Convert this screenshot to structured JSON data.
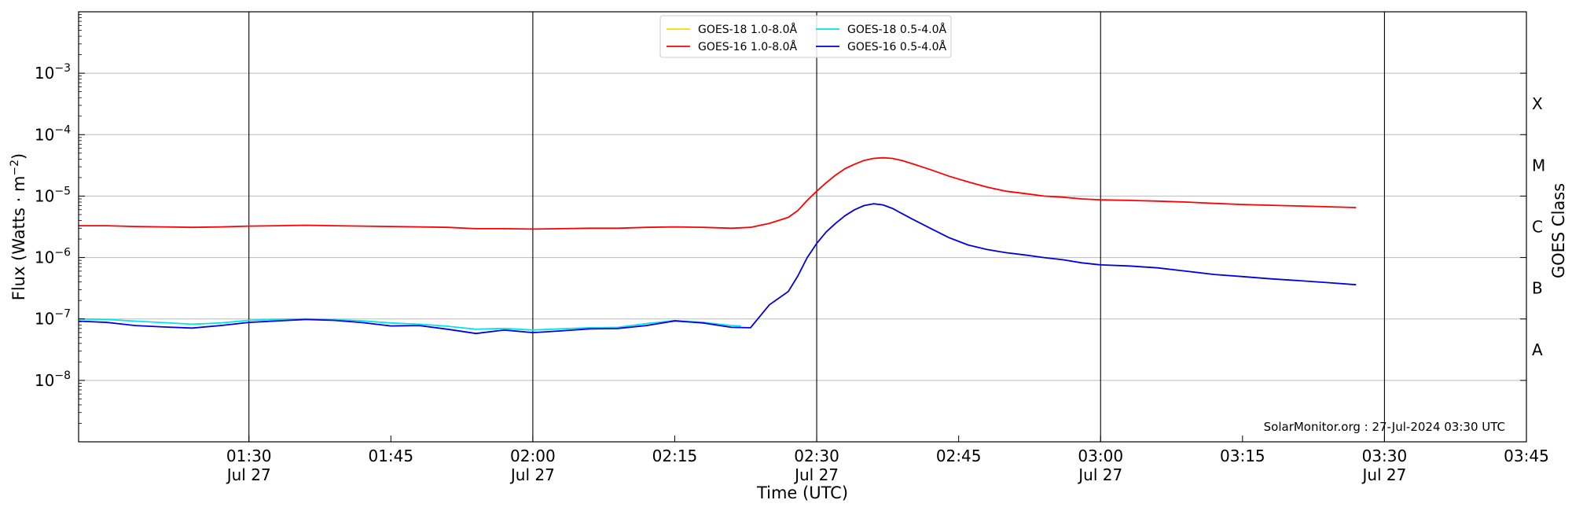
{
  "chart_data": {
    "type": "line",
    "xlabel": "Time (UTC)",
    "ylabel": "Flux (Watts · m",
    "ylabel_sup": "−2",
    "ylabel_close": ")",
    "y2label": "GOES Class",
    "yscale": "log",
    "xlim": [
      "01:12",
      "03:45"
    ],
    "ylim": [
      1e-09,
      0.01
    ],
    "grid": true,
    "legend_position": "top-center",
    "credit": "SolarMonitor.org : 27-Jul-2024 03:30 UTC",
    "x_ticks": [
      {
        "t": "01:30",
        "line1": "01:30",
        "line2": "Jul 27",
        "major": true
      },
      {
        "t": "01:45",
        "line1": "01:45",
        "line2": "",
        "major": false
      },
      {
        "t": "02:00",
        "line1": "02:00",
        "line2": "Jul 27",
        "major": true
      },
      {
        "t": "02:15",
        "line1": "02:15",
        "line2": "",
        "major": false
      },
      {
        "t": "02:30",
        "line1": "02:30",
        "line2": "Jul 27",
        "major": true
      },
      {
        "t": "02:45",
        "line1": "02:45",
        "line2": "",
        "major": false
      },
      {
        "t": "03:00",
        "line1": "03:00",
        "line2": "Jul 27",
        "major": true
      },
      {
        "t": "03:15",
        "line1": "03:15",
        "line2": "",
        "major": false
      },
      {
        "t": "03:30",
        "line1": "03:30",
        "line2": "Jul 27",
        "major": true
      },
      {
        "t": "03:45",
        "line1": "03:45",
        "line2": "",
        "major": false
      }
    ],
    "y_ticks": [
      {
        "v": 1e-08,
        "base": "10",
        "exp": "−8"
      },
      {
        "v": 1e-07,
        "base": "10",
        "exp": "−7"
      },
      {
        "v": 1e-06,
        "base": "10",
        "exp": "−6"
      },
      {
        "v": 1e-05,
        "base": "10",
        "exp": "−5"
      },
      {
        "v": 0.0001,
        "base": "10",
        "exp": "−4"
      },
      {
        "v": 0.001,
        "base": "10",
        "exp": "−3"
      }
    ],
    "goes_classes": [
      {
        "label": "A",
        "v": 3.16e-08
      },
      {
        "label": "B",
        "v": 3.16e-07
      },
      {
        "label": "C",
        "v": 3.16e-06
      },
      {
        "label": "M",
        "v": 3.16e-05
      },
      {
        "label": "X",
        "v": 0.000316
      }
    ],
    "series": [
      {
        "name": "GOES-18 1.0-8.0Å",
        "color": "#ffd700",
        "legend_col": 0,
        "legend_row": 0,
        "x": [],
        "y": []
      },
      {
        "name": "GOES-16 1.0-8.0Å",
        "color": "#ff0000",
        "legend_col": 0,
        "legend_row": 1,
        "x": [
          "01:12",
          "01:15",
          "01:18",
          "01:21",
          "01:24",
          "01:27",
          "01:30",
          "01:33",
          "01:36",
          "01:39",
          "01:42",
          "01:45",
          "01:48",
          "01:51",
          "01:54",
          "01:57",
          "02:00",
          "02:03",
          "02:06",
          "02:09",
          "02:12",
          "02:15",
          "02:18",
          "02:21",
          "02:23",
          "02:25",
          "02:27",
          "02:28",
          "02:29",
          "02:30",
          "02:31",
          "02:32",
          "02:33",
          "02:34",
          "02:35",
          "02:36",
          "02:37",
          "02:38",
          "02:39",
          "02:40",
          "02:42",
          "02:44",
          "02:46",
          "02:48",
          "02:50",
          "02:52",
          "02:54",
          "02:56",
          "02:58",
          "03:00",
          "03:03",
          "03:06",
          "03:09",
          "03:12",
          "03:15",
          "03:18",
          "03:21",
          "03:24",
          "03:27"
        ],
        "y": [
          3.3e-06,
          3.3e-06,
          3.2e-06,
          3.15e-06,
          3.1e-06,
          3.15e-06,
          3.25e-06,
          3.3e-06,
          3.35e-06,
          3.3e-06,
          3.25e-06,
          3.2e-06,
          3.15e-06,
          3.1e-06,
          2.95e-06,
          2.95e-06,
          2.9e-06,
          2.95e-06,
          3e-06,
          3e-06,
          3.1e-06,
          3.15e-06,
          3.1e-06,
          3e-06,
          3.1e-06,
          3.6e-06,
          4.5e-06,
          5.8e-06,
          8.5e-06,
          1.2e-05,
          1.65e-05,
          2.2e-05,
          2.8e-05,
          3.3e-05,
          3.8e-05,
          4.1e-05,
          4.2e-05,
          4.1e-05,
          3.8e-05,
          3.4e-05,
          2.7e-05,
          2.1e-05,
          1.7e-05,
          1.4e-05,
          1.2e-05,
          1.1e-05,
          1e-05,
          9.6e-06,
          9e-06,
          8.7e-06,
          8.5e-06,
          8.3e-06,
          8e-06,
          7.6e-06,
          7.3e-06,
          7.1e-06,
          6.9e-06,
          6.7e-06,
          6.5e-06
        ]
      },
      {
        "name": "GOES-18 0.5-4.0Å",
        "color": "#00e5ee",
        "legend_col": 1,
        "legend_row": 0,
        "x": [
          "01:12",
          "01:15",
          "01:18",
          "01:21",
          "01:24",
          "01:27",
          "01:30",
          "01:33",
          "01:36",
          "01:39",
          "01:42",
          "01:45",
          "01:48",
          "01:51",
          "01:54",
          "01:57",
          "02:00",
          "02:03",
          "02:06",
          "02:09",
          "02:12",
          "02:15",
          "02:18",
          "02:21",
          "02:22"
        ],
        "y": [
          1e-07,
          9.8e-08,
          9.2e-08,
          8.7e-08,
          8.2e-08,
          8.6e-08,
          9.5e-08,
          9.9e-08,
          1e-07,
          9.7e-08,
          9.3e-08,
          8.6e-08,
          8.2e-08,
          7.6e-08,
          6.8e-08,
          7e-08,
          6.6e-08,
          6.9e-08,
          7.2e-08,
          7.3e-08,
          8.4e-08,
          9.4e-08,
          8.8e-08,
          7.8e-08,
          7.7e-08
        ]
      },
      {
        "name": "GOES-16 0.5-4.0Å",
        "color": "#0000e0",
        "legend_col": 1,
        "legend_row": 1,
        "x": [
          "01:12",
          "01:15",
          "01:18",
          "01:21",
          "01:24",
          "01:27",
          "01:30",
          "01:33",
          "01:36",
          "01:39",
          "01:42",
          "01:45",
          "01:48",
          "01:51",
          "01:54",
          "01:57",
          "02:00",
          "02:03",
          "02:06",
          "02:09",
          "02:12",
          "02:15",
          "02:18",
          "02:21",
          "02:23",
          "02:25",
          "02:27",
          "02:28",
          "02:29",
          "02:30",
          "02:31",
          "02:32",
          "02:33",
          "02:34",
          "02:35",
          "02:36",
          "02:37",
          "02:38",
          "02:39",
          "02:40",
          "02:42",
          "02:44",
          "02:46",
          "02:48",
          "02:50",
          "02:52",
          "02:54",
          "02:56",
          "02:58",
          "03:00",
          "03:03",
          "03:06",
          "03:09",
          "03:12",
          "03:15",
          "03:18",
          "03:21",
          "03:24",
          "03:27"
        ],
        "y": [
          9.2e-08,
          8.8e-08,
          7.8e-08,
          7.4e-08,
          7.1e-08,
          7.8e-08,
          8.8e-08,
          9.3e-08,
          9.8e-08,
          9.5e-08,
          8.7e-08,
          7.7e-08,
          7.8e-08,
          6.8e-08,
          5.8e-08,
          6.6e-08,
          6e-08,
          6.4e-08,
          6.9e-08,
          7e-08,
          7.8e-08,
          9.3e-08,
          8.6e-08,
          7.3e-08,
          7.2e-08,
          1.7e-07,
          2.8e-07,
          5e-07,
          1e-06,
          1.7e-06,
          2.6e-06,
          3.6e-06,
          4.8e-06,
          6e-06,
          7e-06,
          7.5e-06,
          7.2e-06,
          6.3e-06,
          5.2e-06,
          4.3e-06,
          3e-06,
          2.1e-06,
          1.6e-06,
          1.35e-06,
          1.2e-06,
          1.1e-06,
          1e-06,
          9.2e-07,
          8.2e-07,
          7.6e-07,
          7.3e-07,
          6.8e-07,
          6e-07,
          5.3e-07,
          4.9e-07,
          4.5e-07,
          4.2e-07,
          3.9e-07,
          3.6e-07
        ]
      }
    ]
  }
}
